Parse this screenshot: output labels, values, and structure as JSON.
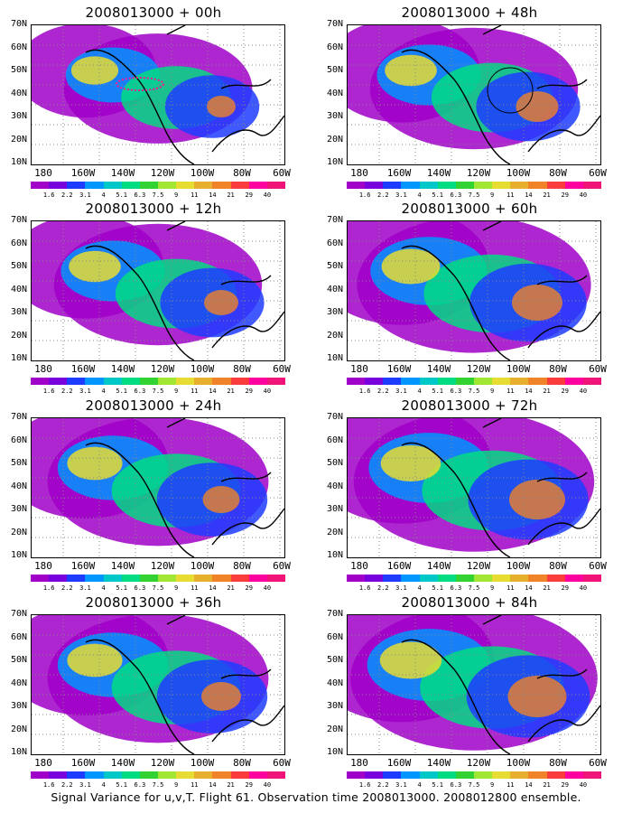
{
  "panels": [
    {
      "title": "2008013000 + 00h",
      "fill": 0.45,
      "hot": 0.2
    },
    {
      "title": "2008013000 + 48h",
      "fill": 0.6,
      "hot": 0.45
    },
    {
      "title": "2008013000 + 12h",
      "fill": 0.6,
      "hot": 0.3
    },
    {
      "title": "2008013000 + 60h",
      "fill": 0.8,
      "hot": 0.6
    },
    {
      "title": "2008013000 + 24h",
      "fill": 0.7,
      "hot": 0.35
    },
    {
      "title": "2008013000 + 72h",
      "fill": 0.85,
      "hot": 0.7
    },
    {
      "title": "2008013000 + 36h",
      "fill": 0.7,
      "hot": 0.4
    },
    {
      "title": "2008013000 + 84h",
      "fill": 0.9,
      "hot": 0.75
    }
  ],
  "y_labels": [
    "70N",
    "60N",
    "50N",
    "40N",
    "30N",
    "20N",
    "10N"
  ],
  "x_labels": [
    "180",
    "160W",
    "140W",
    "120W",
    "100W",
    "80W",
    "60W"
  ],
  "colorbar_values": [
    "1.6",
    "2.2",
    "3.1",
    "4",
    "5.1",
    "6.3",
    "7.5",
    "9",
    "11",
    "14",
    "21",
    "29",
    "40"
  ],
  "colorbar_colors": [
    "#a000c8",
    "#7800dc",
    "#1e3cff",
    "#0096ff",
    "#00c8c8",
    "#00dc82",
    "#32d232",
    "#a0e632",
    "#e6dc32",
    "#e6af2d",
    "#f08228",
    "#fa3c3c",
    "#ff00a0",
    "#f01478"
  ],
  "caption": "Signal Variance for u,v,T. Flight 61. Observation time 2008013000. 2008012800 ensemble."
}
